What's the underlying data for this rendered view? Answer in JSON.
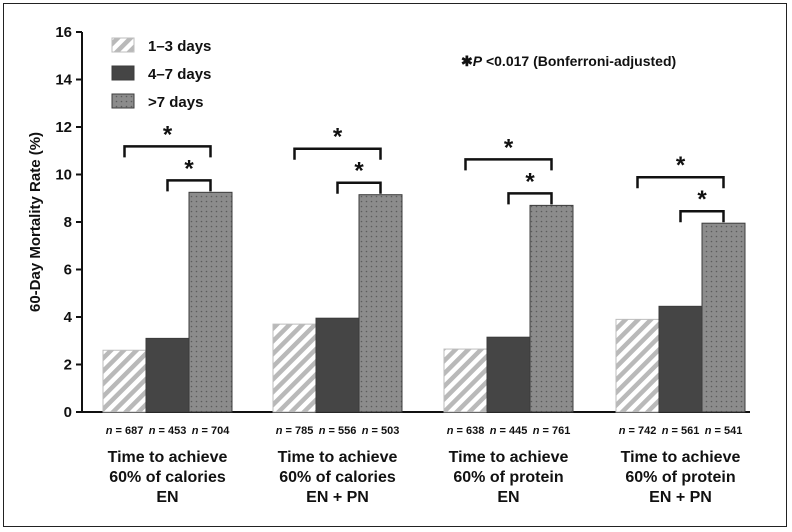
{
  "chart_data": {
    "type": "bar",
    "ylabel": "60-Day Mortality Rate (%)",
    "ylim": [
      0,
      16
    ],
    "yticks": [
      0,
      2,
      4,
      6,
      8,
      10,
      12,
      14,
      16
    ],
    "annotation_star": "✱",
    "annotation_p": "P",
    "annotation_rest": " <0.017 (Bonferroni-adjusted)",
    "sig_symbol": "*",
    "legend": [
      {
        "label": "1–3 days",
        "pattern": "hatch"
      },
      {
        "label": "4–7 days",
        "pattern": "solid"
      },
      {
        "label": ">7 days",
        "pattern": "dots"
      }
    ],
    "n_prefix": "n",
    "groups": [
      {
        "label_lines": [
          "Time to achieve",
          "60% of calories",
          "EN"
        ],
        "values": [
          2.6,
          3.1,
          9.25
        ],
        "n": [
          "687",
          "453",
          "704"
        ]
      },
      {
        "label_lines": [
          "Time to achieve",
          "60% of calories",
          "EN + PN"
        ],
        "values": [
          3.7,
          3.95,
          9.15
        ],
        "n": [
          "785",
          "556",
          "503"
        ]
      },
      {
        "label_lines": [
          "Time to achieve",
          "60% of protein",
          "EN"
        ],
        "values": [
          2.65,
          3.15,
          8.7
        ],
        "n": [
          "638",
          "445",
          "761"
        ]
      },
      {
        "label_lines": [
          "Time to achieve",
          "60% of protein",
          "EN + PN"
        ],
        "values": [
          3.9,
          4.45,
          7.95
        ],
        "n": [
          "742",
          "561",
          "541"
        ]
      }
    ],
    "colors": {
      "hatch_fill": "#ffffff",
      "hatch_line": "#b9b9b9",
      "solid": "#454545",
      "dots_fill": "#8c8c8c",
      "dots_dot": "#5c5c5c",
      "axis": "#111111"
    }
  }
}
